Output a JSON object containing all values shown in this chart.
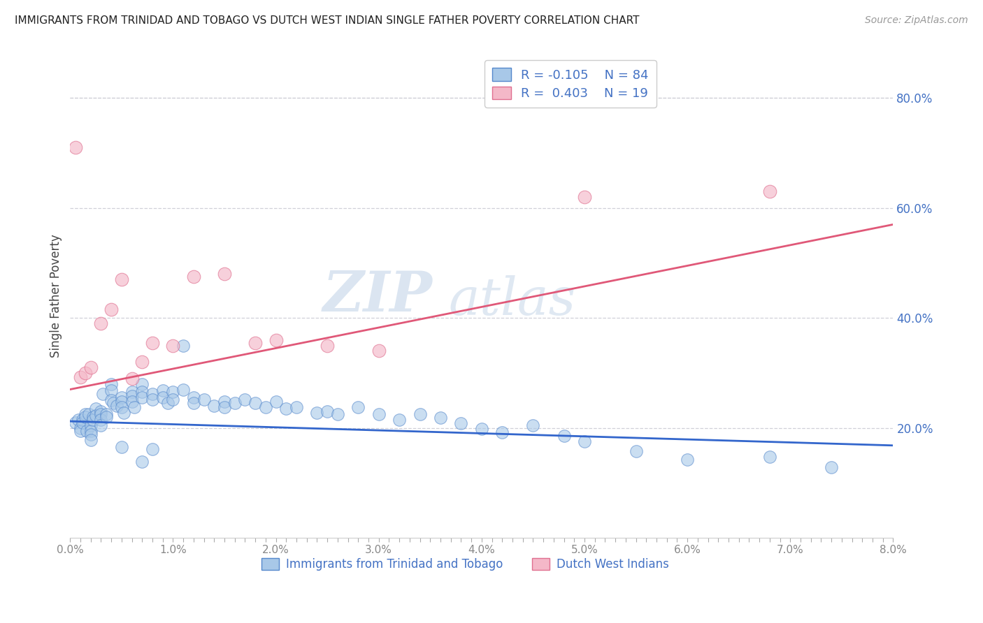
{
  "title": "IMMIGRANTS FROM TRINIDAD AND TOBAGO VS DUTCH WEST INDIAN SINGLE FATHER POVERTY CORRELATION CHART",
  "source": "Source: ZipAtlas.com",
  "ylabel": "Single Father Poverty",
  "right_ytick_labels": [
    "80.0%",
    "60.0%",
    "40.0%",
    "20.0%"
  ],
  "right_ytick_values": [
    0.8,
    0.6,
    0.4,
    0.2
  ],
  "xlim": [
    0.0,
    0.08
  ],
  "ylim": [
    0.0,
    0.88
  ],
  "xtick_labels": [
    "0.0%",
    "",
    "",
    "",
    "",
    "",
    "",
    "",
    "",
    "",
    "1.0%",
    "",
    "",
    "",
    "",
    "",
    "",
    "",
    "",
    "",
    "2.0%",
    "",
    "",
    "",
    "",
    "",
    "",
    "",
    "",
    "",
    "3.0%",
    "",
    "",
    "",
    "",
    "",
    "",
    "",
    "",
    "",
    "4.0%",
    "",
    "",
    "",
    "",
    "",
    "",
    "",
    "",
    "",
    "5.0%",
    "",
    "",
    "",
    "",
    "",
    "",
    "",
    "",
    "",
    "6.0%",
    "",
    "",
    "",
    "",
    "",
    "",
    "",
    "",
    "",
    "7.0%",
    "",
    "",
    "",
    "",
    "",
    "",
    "",
    "",
    "",
    "8.0%"
  ],
  "xtick_values": [
    0.0,
    0.001,
    0.002,
    0.003,
    0.004,
    0.005,
    0.006,
    0.007,
    0.008,
    0.009,
    0.01,
    0.011,
    0.012,
    0.013,
    0.014,
    0.015,
    0.016,
    0.017,
    0.018,
    0.019,
    0.02,
    0.021,
    0.022,
    0.023,
    0.024,
    0.025,
    0.026,
    0.027,
    0.028,
    0.029,
    0.03,
    0.031,
    0.032,
    0.033,
    0.034,
    0.035,
    0.036,
    0.037,
    0.038,
    0.039,
    0.04,
    0.041,
    0.042,
    0.043,
    0.044,
    0.045,
    0.046,
    0.047,
    0.048,
    0.049,
    0.05,
    0.051,
    0.052,
    0.053,
    0.054,
    0.055,
    0.056,
    0.057,
    0.058,
    0.059,
    0.06,
    0.061,
    0.062,
    0.063,
    0.064,
    0.065,
    0.066,
    0.067,
    0.068,
    0.069,
    0.07,
    0.071,
    0.072,
    0.073,
    0.074,
    0.075,
    0.076,
    0.077,
    0.078,
    0.079,
    0.08
  ],
  "blue_R": -0.105,
  "blue_N": 84,
  "pink_R": 0.403,
  "pink_N": 19,
  "blue_fill": "#a8c8e8",
  "pink_fill": "#f4b8c8",
  "blue_edge": "#5588cc",
  "pink_edge": "#e07090",
  "blue_line_color": "#3366cc",
  "pink_line_color": "#e05878",
  "legend_label_blue": "Immigrants from Trinidad and Tobago",
  "legend_label_pink": "Dutch West Indians",
  "watermark1": "ZIP",
  "watermark2": "atlas",
  "blue_line_y0": 0.212,
  "blue_line_y1": 0.168,
  "pink_line_y0": 0.27,
  "pink_line_y1": 0.57,
  "blue_scatter_x": [
    0.0005,
    0.0008,
    0.001,
    0.001,
    0.0012,
    0.0012,
    0.0015,
    0.0015,
    0.0016,
    0.0018,
    0.002,
    0.002,
    0.002,
    0.002,
    0.0022,
    0.0022,
    0.0025,
    0.0025,
    0.003,
    0.003,
    0.003,
    0.003,
    0.0032,
    0.0035,
    0.0035,
    0.004,
    0.004,
    0.004,
    0.0042,
    0.0045,
    0.005,
    0.005,
    0.005,
    0.0052,
    0.006,
    0.006,
    0.006,
    0.0062,
    0.007,
    0.007,
    0.007,
    0.008,
    0.008,
    0.009,
    0.009,
    0.0095,
    0.01,
    0.01,
    0.011,
    0.011,
    0.012,
    0.012,
    0.013,
    0.014,
    0.015,
    0.015,
    0.016,
    0.017,
    0.018,
    0.019,
    0.02,
    0.021,
    0.022,
    0.024,
    0.025,
    0.026,
    0.028,
    0.03,
    0.032,
    0.034,
    0.036,
    0.038,
    0.04,
    0.042,
    0.045,
    0.048,
    0.05,
    0.055,
    0.06,
    0.068,
    0.074,
    0.005,
    0.007,
    0.008
  ],
  "blue_scatter_y": [
    0.21,
    0.215,
    0.2,
    0.195,
    0.215,
    0.21,
    0.225,
    0.22,
    0.195,
    0.225,
    0.205,
    0.195,
    0.188,
    0.178,
    0.22,
    0.215,
    0.235,
    0.222,
    0.23,
    0.225,
    0.215,
    0.205,
    0.262,
    0.225,
    0.22,
    0.28,
    0.268,
    0.25,
    0.245,
    0.24,
    0.255,
    0.248,
    0.238,
    0.228,
    0.265,
    0.258,
    0.248,
    0.238,
    0.28,
    0.265,
    0.255,
    0.262,
    0.252,
    0.268,
    0.255,
    0.245,
    0.265,
    0.252,
    0.35,
    0.27,
    0.255,
    0.245,
    0.252,
    0.24,
    0.248,
    0.238,
    0.245,
    0.252,
    0.245,
    0.238,
    0.248,
    0.235,
    0.238,
    0.228,
    0.23,
    0.225,
    0.238,
    0.225,
    0.215,
    0.225,
    0.218,
    0.208,
    0.198,
    0.192,
    0.205,
    0.185,
    0.175,
    0.158,
    0.142,
    0.148,
    0.128,
    0.165,
    0.138,
    0.162
  ],
  "pink_scatter_x": [
    0.0005,
    0.001,
    0.0015,
    0.002,
    0.003,
    0.004,
    0.005,
    0.006,
    0.007,
    0.008,
    0.01,
    0.012,
    0.015,
    0.018,
    0.02,
    0.025,
    0.03,
    0.05,
    0.068
  ],
  "pink_scatter_y": [
    0.71,
    0.292,
    0.3,
    0.31,
    0.39,
    0.415,
    0.47,
    0.29,
    0.32,
    0.355,
    0.35,
    0.475,
    0.48,
    0.355,
    0.36,
    0.35,
    0.34,
    0.62,
    0.63
  ]
}
